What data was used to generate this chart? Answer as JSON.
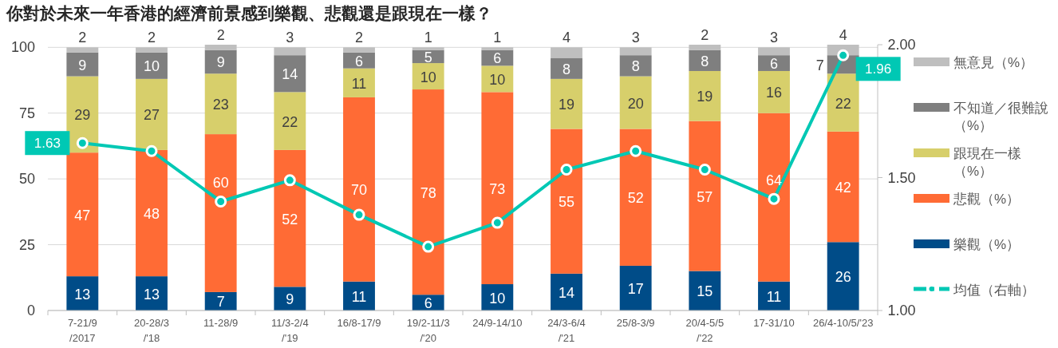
{
  "chart_data": {
    "type": "bar",
    "stacked": true,
    "title": "你對於未來一年香港的經濟前景感到樂觀、悲觀還是跟現在一樣？",
    "categories": [
      "7-21/9\n/2017",
      "20-28/3\n/'18",
      "11-28/9",
      "11/3-2/4\n/'19",
      "16/8-17/9",
      "19/2-11/3\n/'20",
      "24/9-14/10",
      "24/3-6/4\n/'21",
      "25/8-3/9",
      "20/4-5/5\n/'22",
      "17-31/10",
      "26/4-10/5/'23"
    ],
    "series": [
      {
        "name": "樂觀（%）",
        "color": "#004c88",
        "values": [
          13,
          13,
          7,
          9,
          11,
          6,
          10,
          14,
          17,
          15,
          11,
          26
        ]
      },
      {
        "name": "悲觀（%）",
        "color": "#ff6b35",
        "values": [
          47,
          48,
          60,
          52,
          70,
          78,
          73,
          55,
          52,
          57,
          64,
          42
        ]
      },
      {
        "name": "跟現在一樣（%）",
        "color": "#d7cf6b",
        "values": [
          29,
          27,
          23,
          22,
          11,
          10,
          10,
          19,
          20,
          19,
          16,
          22
        ]
      },
      {
        "name": "不知道／很難說（%）",
        "color": "#7f7f7f",
        "values": [
          9,
          10,
          9,
          14,
          6,
          5,
          6,
          8,
          8,
          8,
          6,
          7
        ]
      },
      {
        "name": "無意見（%）",
        "color": "#bfbfbf",
        "values": [
          2,
          2,
          2,
          3,
          2,
          1,
          1,
          4,
          3,
          2,
          3,
          4
        ]
      },
      {
        "name": "均值（右軸）",
        "type": "line",
        "axis": "y2",
        "color": "#00c8b4",
        "marker": "circle",
        "line_style": "solid",
        "values": [
          1.63,
          1.6,
          1.41,
          1.49,
          1.36,
          1.24,
          1.33,
          1.53,
          1.6,
          1.53,
          1.42,
          1.96
        ],
        "value_labels": [
          "1.63",
          null,
          null,
          null,
          null,
          null,
          null,
          null,
          null,
          null,
          null,
          "1.96"
        ]
      }
    ],
    "ylim": [
      0,
      101
    ],
    "yticks": [
      0,
      25,
      50,
      75,
      100
    ],
    "y2lim": [
      1,
      2
    ],
    "y2ticks": [
      {
        "value": 1,
        "label": "1.00"
      },
      {
        "value": 1.5,
        "label": "1.50"
      },
      {
        "value": 2,
        "label": "2.00"
      }
    ],
    "grid": "y",
    "legend": "right",
    "data_labels": true
  }
}
